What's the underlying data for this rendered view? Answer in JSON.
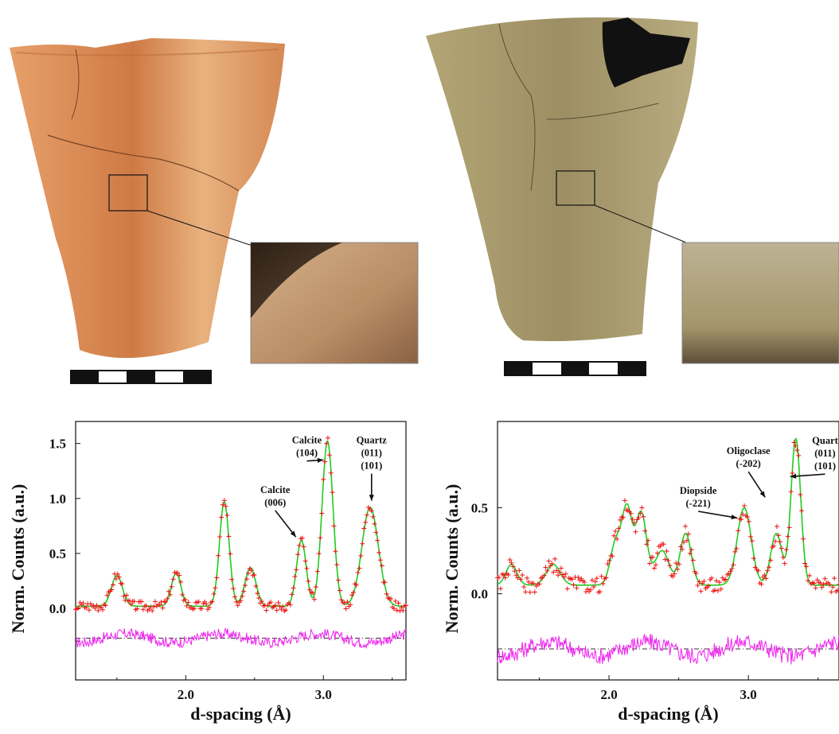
{
  "colors": {
    "fit": "#22cc22",
    "observed": "#ee1111",
    "residual": "#ee22ee",
    "axis": "#111111",
    "vessel_left": "#d98a55",
    "vessel_right": "#a89a6c"
  },
  "icons": [
    "scale-bar",
    "magnified-inset",
    "vessel-photo"
  ],
  "chart_data": [
    {
      "type": "line",
      "xlabel": "d-spacing (Å)",
      "ylabel": "Norm. Counts (a.u.)",
      "xlim": [
        1.2,
        3.6
      ],
      "ylim": [
        -0.65,
        1.7
      ],
      "xticks": [
        "2.0",
        "3.0"
      ],
      "yticks": [
        "0.0",
        "0.5",
        "1.0",
        "1.5"
      ],
      "peaks": [
        {
          "x": 1.5,
          "h": 0.28,
          "w": 0.04
        },
        {
          "x": 1.93,
          "h": 0.3,
          "w": 0.035
        },
        {
          "x": 2.28,
          "h": 0.95,
          "w": 0.035
        },
        {
          "x": 2.47,
          "h": 0.35,
          "w": 0.04
        },
        {
          "x": 2.84,
          "h": 0.6,
          "w": 0.035
        },
        {
          "x": 3.03,
          "h": 1.5,
          "w": 0.04
        },
        {
          "x": 3.34,
          "h": 0.9,
          "w": 0.06
        }
      ],
      "baseline": 0.02,
      "residual_offset": -0.27,
      "annotations": [
        {
          "lines": [
            "Calcite",
            "(104)"
          ],
          "x": 2.88,
          "y": 1.5,
          "ax": 3.0,
          "ay": 1.35
        },
        {
          "lines": [
            "Quartz",
            "(011)",
            "(101)"
          ],
          "x": 3.35,
          "y": 1.5,
          "ax": 3.35,
          "ay": 0.98
        },
        {
          "lines": [
            "Calcite",
            "(006)"
          ],
          "x": 2.65,
          "y": 1.05,
          "ax": 2.8,
          "ay": 0.65
        }
      ]
    },
    {
      "type": "line",
      "xlabel": "d-spacing (Å)",
      "ylabel": "Norm. Counts (a.u.)",
      "xlim": [
        1.2,
        3.65
      ],
      "ylim": [
        -0.5,
        1.0
      ],
      "xticks": [
        "2.0",
        "3.0"
      ],
      "yticks": [
        "0.0",
        "0.5"
      ],
      "peaks": [
        {
          "x": 1.3,
          "h": 0.12,
          "w": 0.04
        },
        {
          "x": 1.6,
          "h": 0.12,
          "w": 0.05
        },
        {
          "x": 2.05,
          "h": 0.25,
          "w": 0.04
        },
        {
          "x": 2.13,
          "h": 0.42,
          "w": 0.035
        },
        {
          "x": 2.23,
          "h": 0.42,
          "w": 0.04
        },
        {
          "x": 2.38,
          "h": 0.2,
          "w": 0.05
        },
        {
          "x": 2.55,
          "h": 0.3,
          "w": 0.04
        },
        {
          "x": 2.97,
          "h": 0.45,
          "w": 0.05
        },
        {
          "x": 3.2,
          "h": 0.3,
          "w": 0.04
        },
        {
          "x": 3.34,
          "h": 0.85,
          "w": 0.035
        }
      ],
      "baseline": 0.05,
      "residual_offset": -0.32,
      "annotations": [
        {
          "lines": [
            "Diopside",
            "(-221)"
          ],
          "x": 2.64,
          "y": 0.58,
          "ax": 2.92,
          "ay": 0.44
        },
        {
          "lines": [
            "Oligoclase",
            "(-202)"
          ],
          "x": 3.0,
          "y": 0.81,
          "ax": 3.12,
          "ay": 0.56
        },
        {
          "lines": [
            "Quart",
            "(011)",
            "(101)"
          ],
          "x": 3.55,
          "y": 0.87,
          "ax": 3.3,
          "ay": 0.68
        }
      ]
    }
  ]
}
